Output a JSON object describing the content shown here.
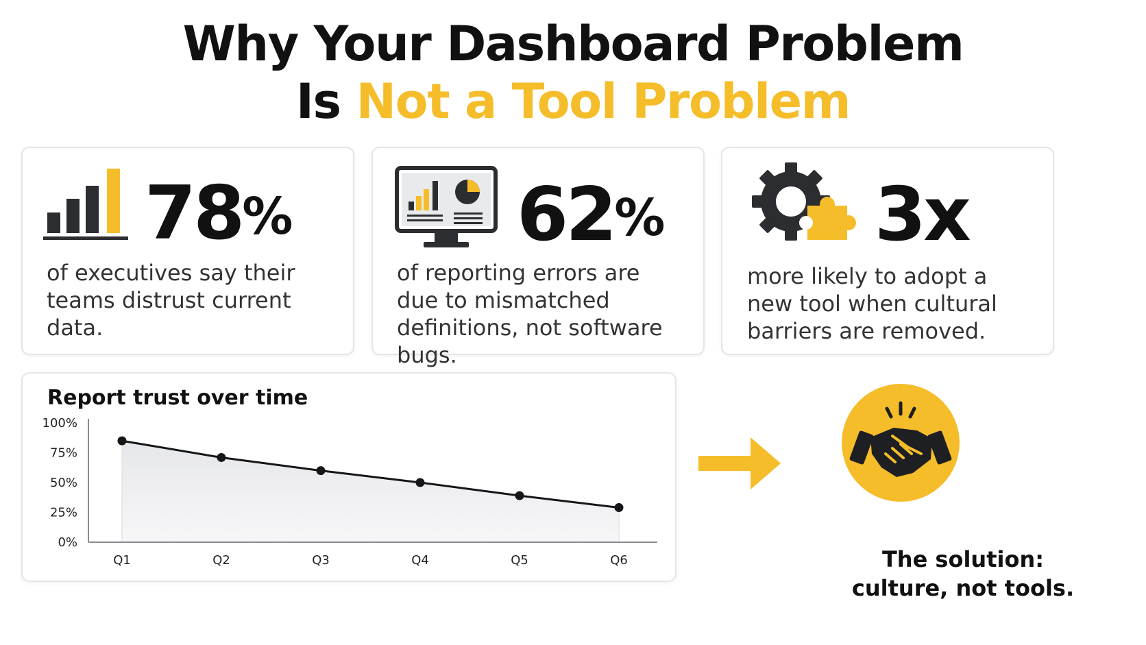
{
  "title": {
    "line1": "Why Your Dashboard Problem",
    "line2_prefix": "Is ",
    "line2_accent": "Not a Tool Problem"
  },
  "colors": {
    "accent": "#F5BD2A",
    "dark": "#2B2D31",
    "text": "#111111"
  },
  "stats": [
    {
      "value": "78",
      "unit": "%",
      "description": "of executives say their teams distrust current data.",
      "icon": "bar-chart-icon"
    },
    {
      "value": "62",
      "unit": "%",
      "description": "of reporting errors are due to mismatched definitions, not software bugs.",
      "icon": "monitor-dashboard-icon"
    },
    {
      "value": "3x",
      "unit": "",
      "description": "more likely to adopt a new tool when cultural barriers are removed.",
      "icon": "gear-puzzle-icon"
    }
  ],
  "chart_data": {
    "type": "line",
    "title": "Report trust over time",
    "categories": [
      "Q1",
      "Q2",
      "Q3",
      "Q4",
      "Q5",
      "Q6"
    ],
    "values": [
      85,
      71,
      60,
      50,
      39,
      29
    ],
    "ylim": [
      0,
      100
    ],
    "yticks": [
      "0%",
      "25%",
      "50%",
      "75%",
      "100%"
    ],
    "ytick_values": [
      0,
      25,
      50,
      75,
      100
    ],
    "area_fill": true,
    "grid": false
  },
  "solution": {
    "line1": "The solution:",
    "line2": "culture, not tools.",
    "icon": "handshake-icon",
    "arrow_icon": "arrow-right-icon"
  }
}
